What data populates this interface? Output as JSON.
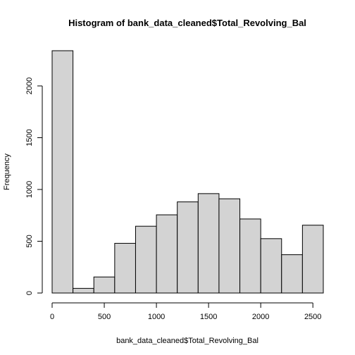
{
  "chart_data": {
    "type": "bar",
    "title": "Histogram of bank_data_cleaned$Total_Revolving_Bal",
    "xlabel": "bank_data_cleaned$Total_Revolving_Bal",
    "ylabel": "Frequency",
    "bins": [
      {
        "from": 0,
        "to": 200,
        "count": 2340
      },
      {
        "from": 200,
        "to": 400,
        "count": 45
      },
      {
        "from": 400,
        "to": 600,
        "count": 155
      },
      {
        "from": 600,
        "to": 800,
        "count": 480
      },
      {
        "from": 800,
        "to": 1000,
        "count": 645
      },
      {
        "from": 1000,
        "to": 1200,
        "count": 755
      },
      {
        "from": 1200,
        "to": 1400,
        "count": 880
      },
      {
        "from": 1400,
        "to": 1600,
        "count": 960
      },
      {
        "from": 1600,
        "to": 1800,
        "count": 910
      },
      {
        "from": 1800,
        "to": 2000,
        "count": 715
      },
      {
        "from": 2000,
        "to": 2200,
        "count": 525
      },
      {
        "from": 2200,
        "to": 2400,
        "count": 370
      },
      {
        "from": 2400,
        "to": 2600,
        "count": 655
      }
    ],
    "xticks": [
      0,
      500,
      1000,
      1500,
      2000,
      2500
    ],
    "yticks": [
      0,
      500,
      1000,
      1500,
      2000
    ],
    "xlim": [
      0,
      2600
    ],
    "ylim": [
      0,
      2340
    ],
    "grid": false,
    "legend": "none",
    "bar_fill": "#d3d3d3"
  }
}
